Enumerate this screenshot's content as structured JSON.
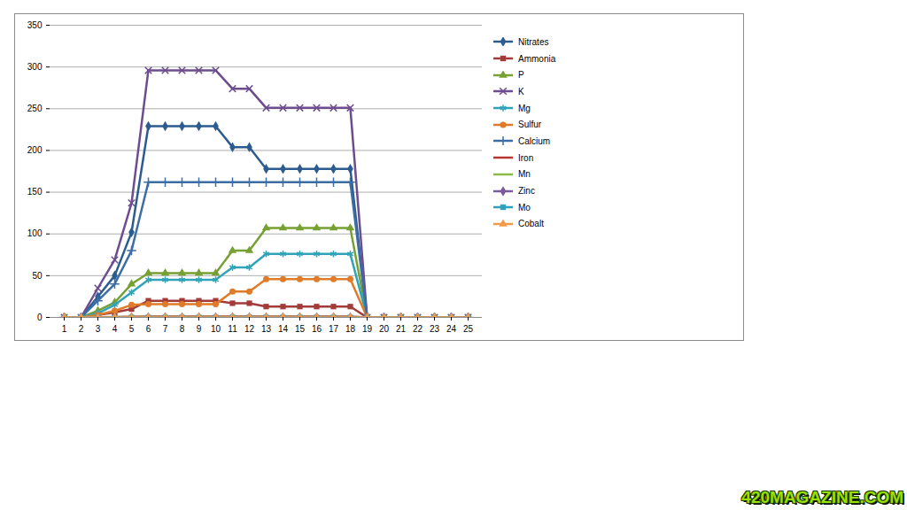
{
  "chart_data": {
    "type": "line",
    "categories": [
      1,
      2,
      3,
      4,
      5,
      6,
      7,
      8,
      9,
      10,
      11,
      12,
      13,
      14,
      15,
      16,
      17,
      18,
      19,
      20,
      21,
      22,
      23,
      24,
      25
    ],
    "ylim": [
      0,
      350
    ],
    "yticks": [
      0,
      50,
      100,
      150,
      200,
      250,
      300,
      350
    ],
    "grid": true,
    "legend": "right",
    "annotation": "420MAGAZINE.COM",
    "series": [
      {
        "name": "Nitrates",
        "color": "#2c5c8f",
        "marker": "diamond",
        "values": [
          0,
          0,
          25,
          50,
          102,
          229,
          229,
          229,
          229,
          229,
          204,
          204,
          178,
          178,
          178,
          178,
          178,
          178,
          0,
          0,
          0,
          0,
          0,
          0,
          0
        ]
      },
      {
        "name": "Ammonia",
        "color": "#a33b39",
        "marker": "square",
        "values": [
          0,
          0,
          3,
          6,
          10,
          20,
          20,
          20,
          20,
          20,
          17,
          17,
          13,
          13,
          13,
          13,
          13,
          13,
          0,
          0,
          0,
          0,
          0,
          0,
          0
        ]
      },
      {
        "name": "P",
        "color": "#77a033",
        "marker": "triangle",
        "values": [
          0,
          0,
          8,
          18,
          40,
          53,
          53,
          53,
          53,
          53,
          80,
          80,
          107,
          107,
          107,
          107,
          107,
          107,
          0,
          0,
          0,
          0,
          0,
          0,
          0
        ]
      },
      {
        "name": "K",
        "color": "#6d4d8f",
        "marker": "times",
        "values": [
          0,
          0,
          35,
          69,
          137,
          296,
          296,
          296,
          296,
          296,
          274,
          274,
          251,
          251,
          251,
          251,
          251,
          251,
          0,
          0,
          0,
          0,
          0,
          0,
          0
        ]
      },
      {
        "name": "Mg",
        "color": "#31a3b8",
        "marker": "asterisk",
        "values": [
          0,
          0,
          5,
          15,
          30,
          45,
          45,
          45,
          45,
          45,
          60,
          60,
          76,
          76,
          76,
          76,
          76,
          76,
          0,
          0,
          0,
          0,
          0,
          0,
          0
        ]
      },
      {
        "name": "Sulfur",
        "color": "#e07b2a",
        "marker": "circle",
        "values": [
          0,
          0,
          3,
          8,
          15,
          16,
          16,
          16,
          16,
          16,
          31,
          31,
          46,
          46,
          46,
          46,
          46,
          46,
          0,
          0,
          0,
          0,
          0,
          0,
          0
        ]
      },
      {
        "name": "Calcium",
        "color": "#3b6ea5",
        "marker": "plus",
        "values": [
          0,
          0,
          20,
          40,
          80,
          162,
          162,
          162,
          162,
          162,
          162,
          162,
          162,
          162,
          162,
          162,
          162,
          162,
          0,
          0,
          0,
          0,
          0,
          0,
          0
        ]
      },
      {
        "name": "Iron",
        "color": "#b83632",
        "marker": "none",
        "values": [
          0,
          0,
          0.3,
          0.5,
          0.8,
          1,
          1,
          1,
          1,
          1,
          1,
          1,
          1,
          1,
          1,
          1,
          1,
          1,
          0,
          0,
          0,
          0,
          0,
          0,
          0
        ]
      },
      {
        "name": "Mn",
        "color": "#8cbb46",
        "marker": "none",
        "values": [
          0,
          0,
          0.2,
          0.3,
          0.4,
          0.5,
          0.5,
          0.5,
          0.5,
          0.5,
          0.5,
          0.5,
          0.5,
          0.5,
          0.5,
          0.5,
          0.5,
          0.5,
          0,
          0,
          0,
          0,
          0,
          0,
          0
        ]
      },
      {
        "name": "Zinc",
        "color": "#7b5a9c",
        "marker": "diamond",
        "values": [
          0,
          0,
          0.1,
          0.1,
          0.2,
          0.2,
          0.2,
          0.2,
          0.2,
          0.2,
          0.2,
          0.2,
          0.2,
          0.2,
          0.2,
          0.2,
          0.2,
          0.2,
          0,
          0,
          0,
          0,
          0,
          0,
          0
        ]
      },
      {
        "name": "Mo",
        "color": "#2fa0bd",
        "marker": "square",
        "values": [
          0,
          0,
          0,
          0,
          0,
          0,
          0,
          0,
          0,
          0,
          0,
          0,
          0,
          0,
          0,
          0,
          0,
          0,
          0,
          0,
          0,
          0,
          0,
          0,
          0
        ]
      },
      {
        "name": "Cobalt",
        "color": "#f29a4a",
        "marker": "triangle",
        "values": [
          0,
          0,
          0,
          0,
          0,
          0,
          0,
          0,
          0,
          0,
          0,
          0,
          0,
          0,
          0,
          0,
          0,
          0,
          0,
          0,
          0,
          0,
          0,
          0,
          0
        ]
      }
    ]
  }
}
